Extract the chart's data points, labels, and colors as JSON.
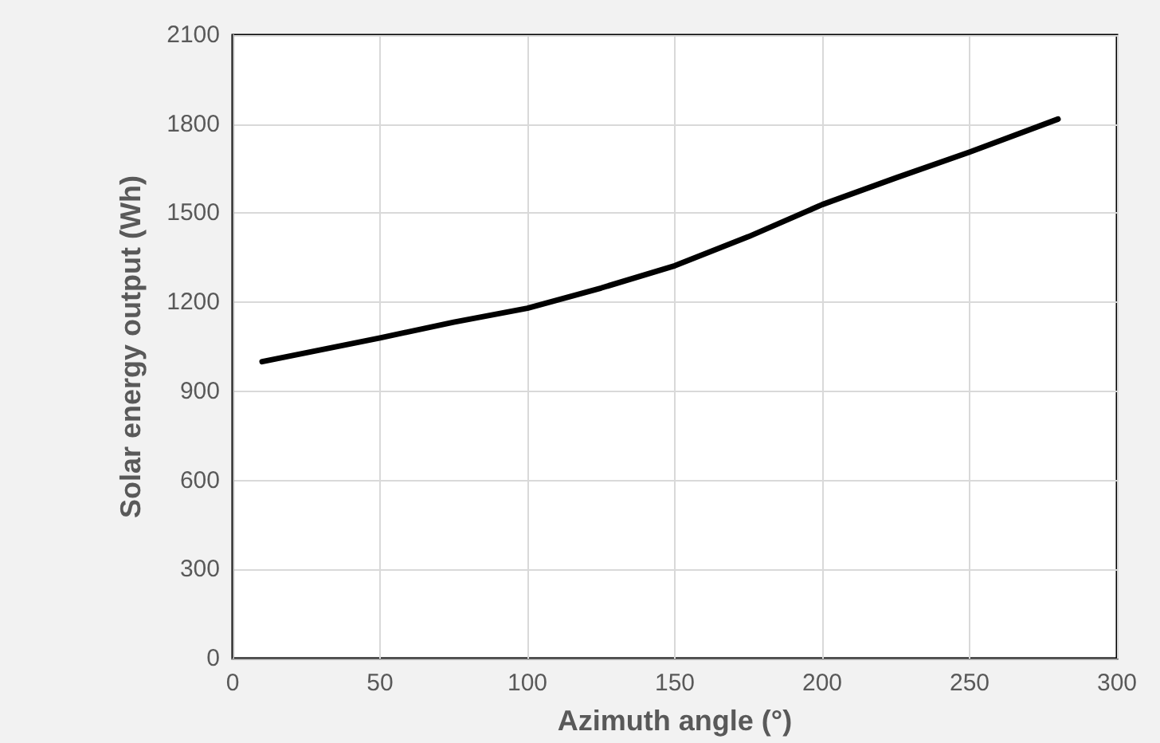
{
  "chart_data": {
    "type": "line",
    "xlabel": "Azimuth angle (°)",
    "ylabel": "Solar energy output (Wh)",
    "x": [
      10,
      50,
      75,
      100,
      125,
      150,
      175,
      200,
      225,
      250,
      280
    ],
    "series": [
      {
        "color": "#000000",
        "values": [
          1000,
          1080,
          1133,
          1180,
          1248,
          1323,
          1421,
          1529,
          1619,
          1706,
          1817
        ]
      }
    ],
    "xlim": [
      0,
      300
    ],
    "xticks": [
      0,
      50,
      100,
      150,
      200,
      250,
      300
    ],
    "ylim": [
      0,
      2100
    ],
    "yticks": [
      0,
      300,
      600,
      900,
      1200,
      1500,
      1800,
      2100
    ],
    "grid": true,
    "marker": "none",
    "line_style": "solid"
  }
}
